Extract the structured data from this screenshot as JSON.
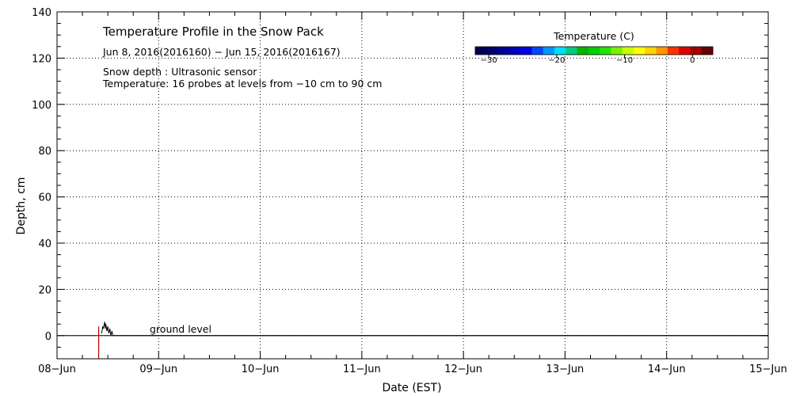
{
  "chart_data": {
    "type": "line",
    "title": "Temperature Profile in the Snow Pack",
    "subtitle": "Jun  8, 2016(2016160) − Jun 15, 2016(2016167)",
    "notes": [
      "Snow depth : Ultrasonic sensor",
      "Temperature: 16 probes at levels from −10 cm to 90 cm"
    ],
    "xlabel": "Date (EST)",
    "ylabel": "Depth, cm",
    "x_ticks": [
      "08−Jun",
      "09−Jun",
      "10−Jun",
      "11−Jun",
      "12−Jun",
      "13−Jun",
      "14−Jun",
      "15−Jun"
    ],
    "xlim": [
      0,
      7
    ],
    "ylim": [
      -10,
      140
    ],
    "y_ticks": [
      0,
      20,
      40,
      60,
      80,
      100,
      120,
      140
    ],
    "grid": true,
    "annotation": "ground level",
    "colorbar": {
      "title": "Temperature (C)",
      "range": [
        -32,
        3
      ],
      "tick_values": [
        -30,
        -20,
        -10,
        0
      ],
      "tick_labels": [
        "−30",
        "−20",
        "−10",
        "0"
      ],
      "colors": [
        "#000050",
        "#00006e",
        "#000096",
        "#0000b9",
        "#0000e1",
        "#0046ff",
        "#0096ff",
        "#00dcff",
        "#00c880",
        "#00b400",
        "#00cd00",
        "#28e100",
        "#78f000",
        "#c8ff00",
        "#ffff00",
        "#ffd200",
        "#ff9600",
        "#ff3200",
        "#dc0000",
        "#a00000",
        "#640000"
      ]
    },
    "series": [
      {
        "x": [
          0.44,
          0.45,
          0.455,
          0.46,
          0.47,
          0.475,
          0.48,
          0.49,
          0.5,
          0.51,
          0.52,
          0.53,
          0.54,
          0.55,
          1.0,
          7.0
        ],
        "values": [
          1,
          4,
          3,
          4,
          6,
          3,
          5,
          2,
          4,
          1,
          3,
          0,
          2,
          0,
          0,
          0
        ]
      },
      {
        "x": [
          0.41,
          0.41
        ],
        "values": [
          -10,
          4
        ]
      }
    ]
  }
}
